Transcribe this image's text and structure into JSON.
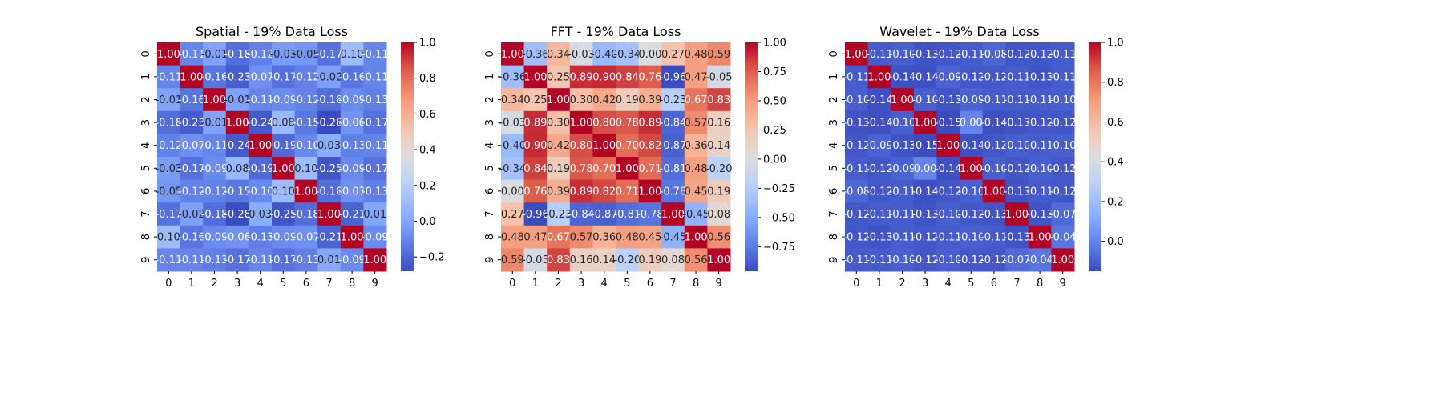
{
  "chart_data": [
    {
      "type": "heatmap",
      "title": "Spatial - 19% Data Loss",
      "x": [
        "0",
        "1",
        "2",
        "3",
        "4",
        "5",
        "6",
        "7",
        "8",
        "9"
      ],
      "y": [
        "0",
        "1",
        "2",
        "3",
        "4",
        "5",
        "6",
        "7",
        "8",
        "9"
      ],
      "values": [
        [
          1.0,
          -0.11,
          -0.01,
          -0.18,
          -0.12,
          -0.03,
          -0.05,
          -0.17,
          0.1,
          -0.11
        ],
        [
          -0.11,
          1.0,
          -0.16,
          -0.23,
          -0.07,
          -0.17,
          -0.12,
          -0.02,
          -0.16,
          -0.11
        ],
        [
          -0.01,
          -0.16,
          1.0,
          -0.01,
          -0.11,
          -0.09,
          -0.12,
          -0.18,
          -0.09,
          -0.13
        ],
        [
          -0.18,
          -0.23,
          -0.01,
          1.0,
          -0.24,
          0.08,
          -0.15,
          -0.28,
          -0.06,
          -0.17
        ],
        [
          -0.12,
          -0.07,
          -0.11,
          -0.24,
          1.0,
          -0.19,
          -0.1,
          0.03,
          -0.13,
          -0.11
        ],
        [
          -0.03,
          -0.17,
          -0.09,
          0.08,
          -0.19,
          1.0,
          0.1,
          -0.25,
          -0.09,
          -0.17
        ],
        [
          -0.05,
          -0.12,
          -0.12,
          -0.15,
          -0.1,
          0.1,
          1.0,
          -0.18,
          -0.07,
          -0.13
        ],
        [
          -0.17,
          -0.02,
          -0.18,
          -0.28,
          0.03,
          -0.25,
          -0.18,
          1.0,
          -0.21,
          0.01
        ],
        [
          0.1,
          -0.16,
          -0.09,
          -0.06,
          -0.13,
          -0.09,
          -0.07,
          -0.21,
          1.0,
          -0.09
        ],
        [
          -0.11,
          -0.11,
          -0.13,
          -0.17,
          -0.11,
          -0.17,
          -0.13,
          0.01,
          -0.09,
          1.0
        ]
      ],
      "vmin": -0.28,
      "vmax": 1.0,
      "colormap": "coolwarm",
      "colorbar_ticks": [
        -0.2,
        0.0,
        0.2,
        0.4,
        0.6,
        0.8,
        1.0
      ],
      "colorbar_labels": [
        "−0.2",
        "0.0",
        "0.2",
        "0.4",
        "0.6",
        "0.8",
        "1.0"
      ]
    },
    {
      "type": "heatmap",
      "title": "FFT - 19% Data Loss",
      "x": [
        "0",
        "1",
        "2",
        "3",
        "4",
        "5",
        "6",
        "7",
        "8",
        "9"
      ],
      "y": [
        "0",
        "1",
        "2",
        "3",
        "4",
        "5",
        "6",
        "7",
        "8",
        "9"
      ],
      "values": [
        [
          1.0,
          -0.36,
          0.34,
          -0.03,
          -0.4,
          -0.34,
          0.0,
          0.27,
          0.48,
          0.59
        ],
        [
          -0.36,
          1.0,
          0.25,
          0.89,
          0.9,
          0.84,
          0.76,
          -0.96,
          0.47,
          -0.05
        ],
        [
          0.34,
          0.25,
          1.0,
          0.3,
          0.42,
          0.19,
          0.39,
          -0.23,
          0.67,
          0.83
        ],
        [
          -0.03,
          0.89,
          0.3,
          1.0,
          0.8,
          0.78,
          0.89,
          -0.84,
          0.57,
          0.16
        ],
        [
          -0.4,
          0.9,
          0.42,
          0.8,
          1.0,
          0.7,
          0.82,
          -0.87,
          0.36,
          0.14
        ],
        [
          -0.34,
          0.84,
          0.19,
          0.78,
          0.7,
          1.0,
          0.71,
          -0.81,
          0.48,
          -0.2
        ],
        [
          0.0,
          0.76,
          0.39,
          0.89,
          0.82,
          0.71,
          1.0,
          -0.78,
          0.45,
          0.19
        ],
        [
          0.27,
          -0.96,
          -0.23,
          -0.84,
          -0.87,
          -0.81,
          -0.78,
          1.0,
          -0.45,
          0.08
        ],
        [
          0.48,
          0.47,
          0.67,
          0.57,
          0.36,
          0.48,
          0.45,
          -0.45,
          1.0,
          0.56
        ],
        [
          0.59,
          -0.05,
          0.83,
          0.16,
          0.14,
          -0.2,
          0.19,
          0.08,
          0.56,
          1.0
        ]
      ],
      "vmin": -0.96,
      "vmax": 1.0,
      "colormap": "coolwarm",
      "colorbar_ticks": [
        -0.75,
        -0.5,
        -0.25,
        0.0,
        0.25,
        0.5,
        0.75,
        1.0
      ],
      "colorbar_labels": [
        "−0.75",
        "−0.50",
        "−0.25",
        "0.00",
        "0.25",
        "0.50",
        "0.75",
        "1.00"
      ]
    },
    {
      "type": "heatmap",
      "title": "Wavelet - 19% Data Loss",
      "x": [
        "0",
        "1",
        "2",
        "3",
        "4",
        "5",
        "6",
        "7",
        "8",
        "9"
      ],
      "y": [
        "0",
        "1",
        "2",
        "3",
        "4",
        "5",
        "6",
        "7",
        "8",
        "9"
      ],
      "values": [
        [
          1.0,
          -0.11,
          -0.1,
          -0.13,
          -0.12,
          -0.11,
          -0.08,
          -0.12,
          -0.12,
          -0.11
        ],
        [
          -0.11,
          1.0,
          -0.14,
          -0.14,
          -0.09,
          -0.12,
          -0.12,
          -0.11,
          -0.13,
          -0.11
        ],
        [
          -0.1,
          -0.14,
          1.0,
          -0.1,
          -0.13,
          -0.09,
          -0.11,
          -0.11,
          -0.11,
          -0.1
        ],
        [
          -0.13,
          -0.14,
          -0.1,
          1.0,
          -0.15,
          0.0,
          -0.14,
          -0.13,
          -0.12,
          -0.12
        ],
        [
          -0.12,
          -0.09,
          -0.13,
          -0.15,
          1.0,
          -0.14,
          -0.12,
          -0.1,
          -0.11,
          -0.1
        ],
        [
          -0.11,
          -0.12,
          -0.09,
          0.0,
          -0.14,
          1.0,
          -0.1,
          -0.12,
          -0.1,
          -0.12
        ],
        [
          -0.08,
          -0.12,
          -0.11,
          -0.14,
          -0.12,
          -0.1,
          1.0,
          -0.13,
          -0.11,
          -0.12
        ],
        [
          -0.12,
          -0.11,
          -0.11,
          -0.13,
          -0.1,
          -0.12,
          -0.13,
          1.0,
          -0.13,
          -0.07
        ],
        [
          -0.12,
          -0.13,
          -0.11,
          -0.12,
          -0.11,
          -0.1,
          -0.11,
          -0.13,
          1.0,
          -0.04
        ],
        [
          -0.11,
          -0.11,
          -0.1,
          -0.12,
          -0.1,
          -0.12,
          -0.12,
          -0.07,
          -0.04,
          1.0
        ]
      ],
      "vmin": -0.15,
      "vmax": 1.0,
      "colormap": "coolwarm",
      "colorbar_ticks": [
        0.0,
        0.2,
        0.4,
        0.6,
        0.8,
        1.0
      ],
      "colorbar_labels": [
        "0.0",
        "0.2",
        "0.4",
        "0.6",
        "0.8",
        "1.0"
      ]
    }
  ]
}
